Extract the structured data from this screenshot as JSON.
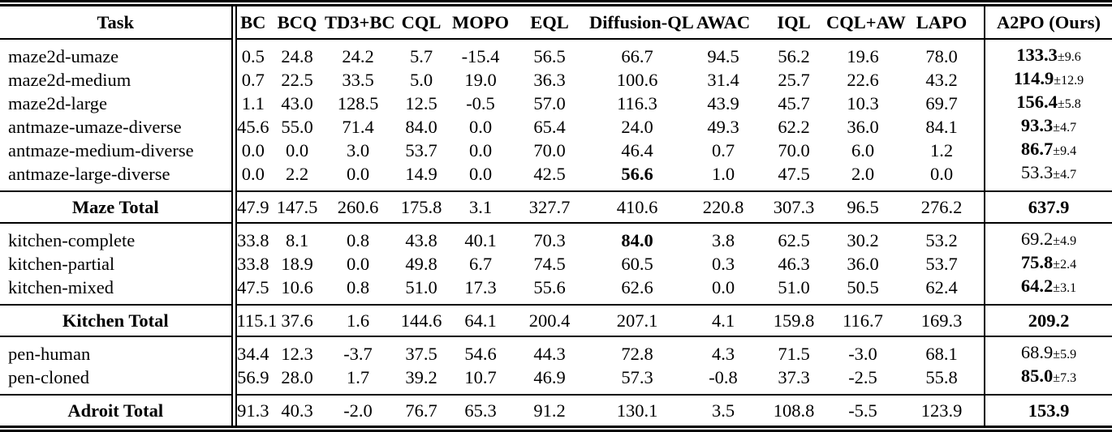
{
  "colors": {
    "text": "#000000",
    "background": "#ffffff",
    "rule": "#000000"
  },
  "table": {
    "header": {
      "task": "Task",
      "methods": [
        "BC",
        "BCQ",
        "TD3+BC",
        "CQL",
        "MOPO",
        "EQL",
        "Diffusion-QL",
        "AWAC",
        "IQL",
        "CQL+AW",
        "LAPO"
      ],
      "ours": "A2PO (Ours)"
    },
    "sections": [
      {
        "name": "maze",
        "rows": [
          {
            "task": "maze2d-umaze",
            "values": [
              "0.5",
              "24.8",
              "24.2",
              "5.7",
              "-15.4",
              "56.5",
              "66.7",
              "94.5",
              "56.2",
              "19.6",
              "78.0"
            ],
            "bold_value_indices": [],
            "ours": {
              "mean": "133.3",
              "pm": "±9.6",
              "bold": true
            }
          },
          {
            "task": "maze2d-medium",
            "values": [
              "0.7",
              "22.5",
              "33.5",
              "5.0",
              "19.0",
              "36.3",
              "100.6",
              "31.4",
              "25.7",
              "22.6",
              "43.2"
            ],
            "bold_value_indices": [],
            "ours": {
              "mean": "114.9",
              "pm": "±12.9",
              "bold": true
            }
          },
          {
            "task": "maze2d-large",
            "values": [
              "1.1",
              "43.0",
              "128.5",
              "12.5",
              "-0.5",
              "57.0",
              "116.3",
              "43.9",
              "45.7",
              "10.3",
              "69.7"
            ],
            "bold_value_indices": [],
            "ours": {
              "mean": "156.4",
              "pm": "±5.8",
              "bold": true
            }
          },
          {
            "task": "antmaze-umaze-diverse",
            "values": [
              "45.6",
              "55.0",
              "71.4",
              "84.0",
              "0.0",
              "65.4",
              "24.0",
              "49.3",
              "62.2",
              "36.0",
              "84.1"
            ],
            "bold_value_indices": [],
            "ours": {
              "mean": "93.3",
              "pm": "±4.7",
              "bold": true
            }
          },
          {
            "task": "antmaze-medium-diverse",
            "values": [
              "0.0",
              "0.0",
              "3.0",
              "53.7",
              "0.0",
              "70.0",
              "46.4",
              "0.7",
              "70.0",
              "6.0",
              "1.2"
            ],
            "bold_value_indices": [],
            "ours": {
              "mean": "86.7",
              "pm": "±9.4",
              "bold": true
            }
          },
          {
            "task": "antmaze-large-diverse",
            "values": [
              "0.0",
              "2.2",
              "0.0",
              "14.9",
              "0.0",
              "42.5",
              "56.6",
              "1.0",
              "47.5",
              "2.0",
              "0.0"
            ],
            "bold_value_indices": [
              6
            ],
            "ours": {
              "mean": "53.3",
              "pm": "±4.7",
              "bold": false
            }
          }
        ],
        "total": {
          "label": "Maze Total",
          "values": [
            "47.9",
            "147.5",
            "260.6",
            "175.8",
            "3.1",
            "327.7",
            "410.6",
            "220.8",
            "307.3",
            "96.5",
            "276.2"
          ],
          "bold_value_indices": [],
          "ours": {
            "mean": "637.9",
            "pm": "",
            "bold": true
          }
        }
      },
      {
        "name": "kitchen",
        "rows": [
          {
            "task": "kitchen-complete",
            "values": [
              "33.8",
              "8.1",
              "0.8",
              "43.8",
              "40.1",
              "70.3",
              "84.0",
              "3.8",
              "62.5",
              "30.2",
              "53.2"
            ],
            "bold_value_indices": [
              6
            ],
            "ours": {
              "mean": "69.2",
              "pm": "±4.9",
              "bold": false
            }
          },
          {
            "task": "kitchen-partial",
            "values": [
              "33.8",
              "18.9",
              "0.0",
              "49.8",
              "6.7",
              "74.5",
              "60.5",
              "0.3",
              "46.3",
              "36.0",
              "53.7"
            ],
            "bold_value_indices": [],
            "ours": {
              "mean": "75.8",
              "pm": "±2.4",
              "bold": true
            }
          },
          {
            "task": "kitchen-mixed",
            "values": [
              "47.5",
              "10.6",
              "0.8",
              "51.0",
              "17.3",
              "55.6",
              "62.6",
              "0.0",
              "51.0",
              "50.5",
              "62.4"
            ],
            "bold_value_indices": [],
            "ours": {
              "mean": "64.2",
              "pm": "±3.1",
              "bold": true
            }
          }
        ],
        "total": {
          "label": "Kitchen Total",
          "values": [
            "115.1",
            "37.6",
            "1.6",
            "144.6",
            "64.1",
            "200.4",
            "207.1",
            "4.1",
            "159.8",
            "116.7",
            "169.3"
          ],
          "bold_value_indices": [],
          "ours": {
            "mean": "209.2",
            "pm": "",
            "bold": true
          }
        }
      },
      {
        "name": "adroit",
        "rows": [
          {
            "task": "pen-human",
            "values": [
              "34.4",
              "12.3",
              "-3.7",
              "37.5",
              "54.6",
              "44.3",
              "72.8",
              "4.3",
              "71.5",
              "-3.0",
              "68.1"
            ],
            "bold_value_indices": [],
            "ours": {
              "mean": "68.9",
              "pm": "±5.9",
              "bold": false
            }
          },
          {
            "task": "pen-cloned",
            "values": [
              "56.9",
              "28.0",
              "1.7",
              "39.2",
              "10.7",
              "46.9",
              "57.3",
              "-0.8",
              "37.3",
              "-2.5",
              "55.8"
            ],
            "bold_value_indices": [],
            "ours": {
              "mean": "85.0",
              "pm": "±7.3",
              "bold": true
            }
          }
        ],
        "total": {
          "label": "Adroit Total",
          "values": [
            "91.3",
            "40.3",
            "-2.0",
            "76.7",
            "65.3",
            "91.2",
            "130.1",
            "3.5",
            "108.8",
            "-5.5",
            "123.9"
          ],
          "bold_value_indices": [],
          "ours": {
            "mean": "153.9",
            "pm": "",
            "bold": true
          }
        }
      }
    ]
  }
}
